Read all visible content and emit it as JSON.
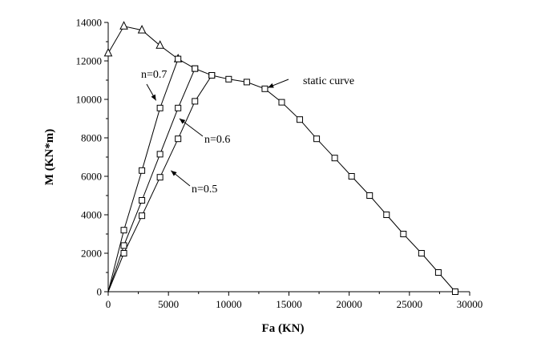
{
  "chart_data": {
    "type": "line",
    "title": "",
    "xlabel": "Fa  (KN)",
    "ylabel": "M  (KN*m)",
    "xlim": [
      0,
      30000
    ],
    "ylim": [
      0,
      14000
    ],
    "xticks": [
      0,
      5000,
      10000,
      15000,
      20000,
      25000,
      30000
    ],
    "yticks": [
      0,
      2000,
      4000,
      6000,
      8000,
      10000,
      12000,
      14000
    ],
    "grid": false,
    "legend": "none",
    "series": [
      {
        "name": "static curve",
        "marker": "triangle-square",
        "points": [
          [
            0,
            12400
          ],
          [
            1300,
            13800
          ],
          [
            2800,
            13600
          ],
          [
            4300,
            12800
          ],
          [
            5800,
            12100
          ],
          [
            7200,
            11600
          ],
          [
            8600,
            11250
          ],
          [
            10000,
            11050
          ],
          [
            11500,
            10900
          ],
          [
            13000,
            10550
          ],
          [
            14400,
            9850
          ],
          [
            15900,
            8950
          ],
          [
            17300,
            7950
          ],
          [
            18800,
            6950
          ],
          [
            20200,
            6000
          ],
          [
            21700,
            5000
          ],
          [
            23100,
            4000
          ],
          [
            24500,
            3000
          ],
          [
            26000,
            2000
          ],
          [
            27400,
            1000
          ],
          [
            28800,
            0
          ]
        ]
      },
      {
        "name": "n=0.7",
        "marker": "square",
        "points": [
          [
            0,
            0
          ],
          [
            1300,
            3200
          ],
          [
            2800,
            6300
          ],
          [
            4300,
            9550
          ],
          [
            5800,
            12100
          ]
        ]
      },
      {
        "name": "n=0.6",
        "marker": "square",
        "points": [
          [
            0,
            0
          ],
          [
            1300,
            2400
          ],
          [
            2800,
            4750
          ],
          [
            4300,
            7150
          ],
          [
            5800,
            9550
          ],
          [
            7200,
            11600
          ]
        ]
      },
      {
        "name": "n=0.5",
        "marker": "square",
        "points": [
          [
            0,
            0
          ],
          [
            1300,
            2000
          ],
          [
            2800,
            3950
          ],
          [
            4300,
            5950
          ],
          [
            5800,
            7950
          ],
          [
            7200,
            9900
          ],
          [
            8600,
            11250
          ]
        ]
      }
    ],
    "annotations": [
      {
        "text": "static curve",
        "target": [
          13000,
          10550
        ]
      },
      {
        "text": "n=0.7",
        "target": [
          4100,
          9800
        ]
      },
      {
        "text": "n=0.6",
        "target": [
          5700,
          9100
        ]
      },
      {
        "text": "n=0.5",
        "target": [
          5000,
          6400
        ]
      }
    ]
  }
}
